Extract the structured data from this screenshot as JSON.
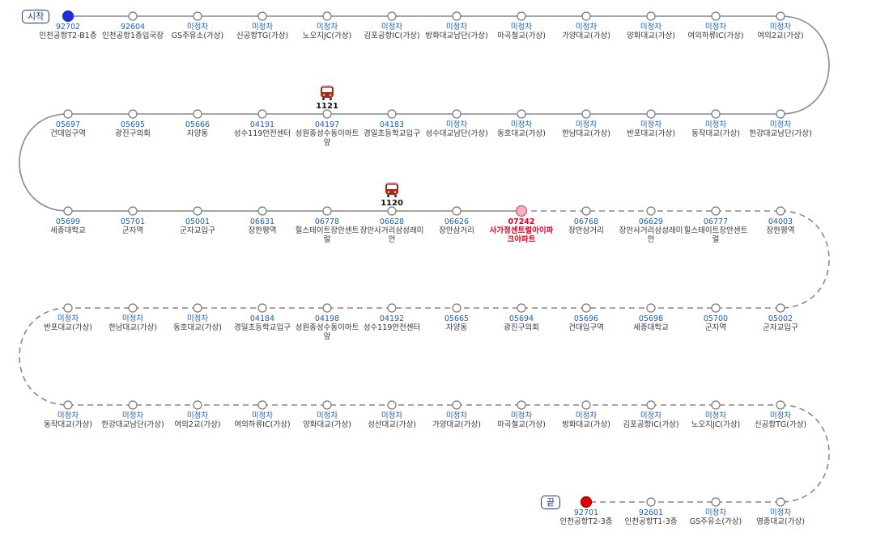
{
  "markers": {
    "start": "시작",
    "end": "끝"
  },
  "colors": {
    "line": "#888888",
    "stop_code": "#1a5fb4",
    "highlight": "#e0001b",
    "start_dot": "#1d2ed8",
    "end_dot": "#e00000",
    "current_dot": "#f7b0bc",
    "bus": "#9e2a1e"
  },
  "buses": [
    {
      "number": "1121",
      "row": 1,
      "col": 4
    },
    {
      "number": "1120",
      "row": 2,
      "col": 5
    }
  ],
  "rows": [
    [
      {
        "code": "92702",
        "name": "인천공항T2-B1층",
        "type": "start"
      },
      {
        "code": "92604",
        "name": "인천공항1층입국장"
      },
      {
        "code": "미정차",
        "name": "GS주유소(가상)"
      },
      {
        "code": "미정차",
        "name": "신공항TG(가상)"
      },
      {
        "code": "미정차",
        "name": "노오지JC(가상)"
      },
      {
        "code": "미정차",
        "name": "김포공항IC(가상)"
      },
      {
        "code": "미정차",
        "name": "방화대교남단(가상)"
      },
      {
        "code": "미정차",
        "name": "마곡철교(가상)"
      },
      {
        "code": "미정차",
        "name": "가양대교(가상)"
      },
      {
        "code": "미정차",
        "name": "양화대교(가상)"
      },
      {
        "code": "미정차",
        "name": "여의하류IC(가상)"
      },
      {
        "code": "미정차",
        "name": "여의2교(가상)"
      }
    ],
    [
      {
        "code": "05697",
        "name": "건대입구역"
      },
      {
        "code": "05695",
        "name": "광진구의회"
      },
      {
        "code": "05666",
        "name": "자양동"
      },
      {
        "code": "04191",
        "name": "성수119안전센터"
      },
      {
        "code": "04197",
        "name": "성원중성수동이마트앞"
      },
      {
        "code": "04183",
        "name": "경일초등학교입구"
      },
      {
        "code": "미정차",
        "name": "성수대교남단(가상)"
      },
      {
        "code": "미정차",
        "name": "동호대교(가상)"
      },
      {
        "code": "미정차",
        "name": "한남대교(가상)"
      },
      {
        "code": "미정차",
        "name": "반포대교(가상)"
      },
      {
        "code": "미정차",
        "name": "동작대교(가상)"
      },
      {
        "code": "미정차",
        "name": "한강대교남단(가상)"
      }
    ],
    [
      {
        "code": "05699",
        "name": "세종대학교"
      },
      {
        "code": "05701",
        "name": "군자역"
      },
      {
        "code": "05001",
        "name": "군자교입구"
      },
      {
        "code": "06631",
        "name": "장한평역"
      },
      {
        "code": "06778",
        "name": "힐스테이트장안센트럴"
      },
      {
        "code": "06628",
        "name": "장안사거리삼성래미안"
      },
      {
        "code": "06626",
        "name": "장안삼거리"
      },
      {
        "code": "07242",
        "name": "사가정센트럴아이파크아파트",
        "type": "current"
      },
      {
        "code": "06768",
        "name": "장안삼거리"
      },
      {
        "code": "06629",
        "name": "장안사거리삼성래미안"
      },
      {
        "code": "06777",
        "name": "힐스테이트장안센트럴"
      },
      {
        "code": "04003",
        "name": "장한평역"
      }
    ],
    [
      {
        "code": "미정차",
        "name": "반포대교(가상)"
      },
      {
        "code": "미정차",
        "name": "한남대교(가상)"
      },
      {
        "code": "미정차",
        "name": "동호대교(가상)"
      },
      {
        "code": "04184",
        "name": "경일초등학교입구"
      },
      {
        "code": "04198",
        "name": "성원중성수동이마트앞"
      },
      {
        "code": "04192",
        "name": "성수119안전센터"
      },
      {
        "code": "05665",
        "name": "자양동"
      },
      {
        "code": "05694",
        "name": "광진구의회"
      },
      {
        "code": "05696",
        "name": "건대입구역"
      },
      {
        "code": "05698",
        "name": "세종대학교"
      },
      {
        "code": "05700",
        "name": "군자역"
      },
      {
        "code": "05002",
        "name": "군자교입구"
      }
    ],
    [
      {
        "code": "미정차",
        "name": "동작대교(가상)"
      },
      {
        "code": "미정차",
        "name": "한강대교남단(가상)"
      },
      {
        "code": "미정차",
        "name": "여의2교(가상)"
      },
      {
        "code": "미정차",
        "name": "여의하류IC(가상)"
      },
      {
        "code": "미정차",
        "name": "양화대교(가상)"
      },
      {
        "code": "미정차",
        "name": "성산대교(가상)"
      },
      {
        "code": "미정차",
        "name": "가양대교(가상)"
      },
      {
        "code": "미정차",
        "name": "마곡철교(가상)"
      },
      {
        "code": "미정차",
        "name": "방화대교(가상)"
      },
      {
        "code": "미정차",
        "name": "김포공항IC(가상)"
      },
      {
        "code": "미정차",
        "name": "노오지JC(가상)"
      },
      {
        "code": "미정차",
        "name": "신공항TG(가상)"
      }
    ],
    [
      null,
      null,
      null,
      null,
      null,
      null,
      null,
      null,
      {
        "code": "92701",
        "name": "인천공항T2-3층",
        "type": "end"
      },
      {
        "code": "92601",
        "name": "인천공항T1-3층"
      },
      {
        "code": "미정차",
        "name": "GS주유소(가상)"
      },
      {
        "code": "미정차",
        "name": "영종대교(가상)"
      }
    ]
  ]
}
